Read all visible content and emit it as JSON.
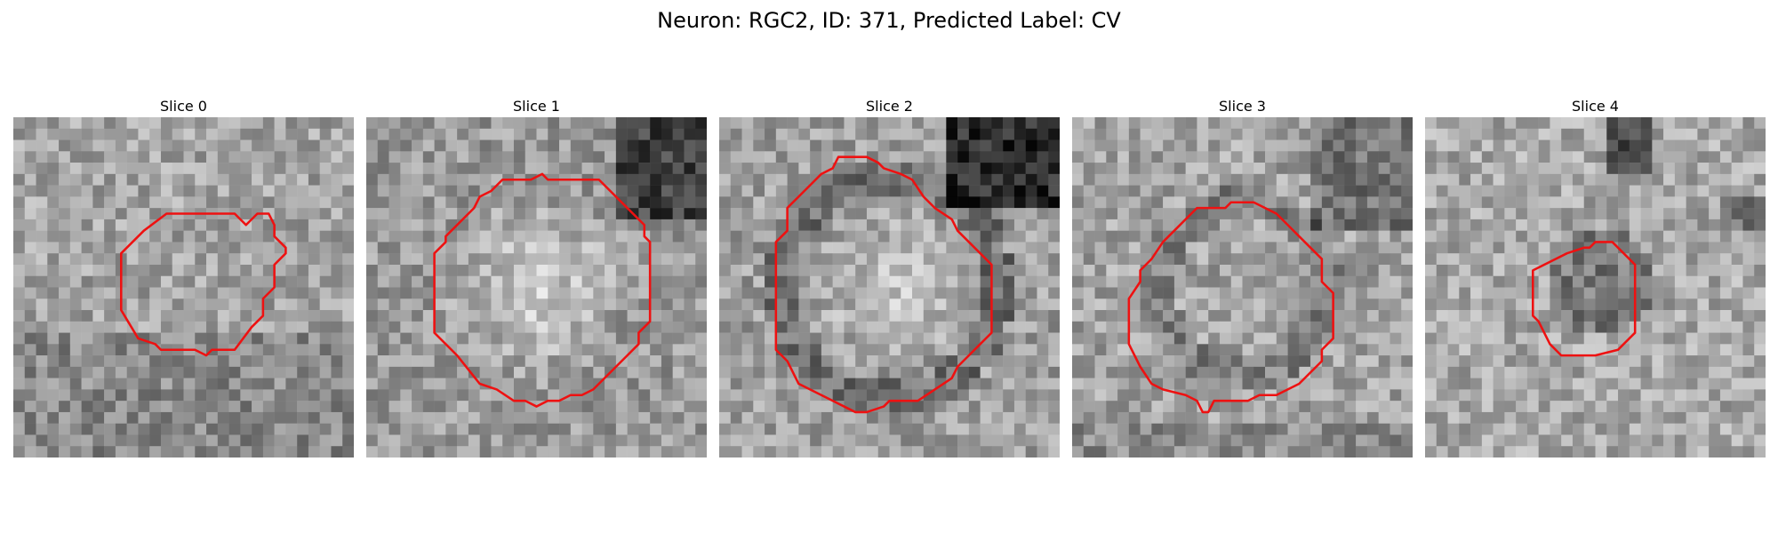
{
  "figure": {
    "title": "Neuron: RGC2, ID: 371, Predicted Label: CV",
    "outline_color": "#ee1111"
  },
  "panels": [
    {
      "title": "Slice 0",
      "tile_variant": "speckled",
      "outline_shape": "small-irregular-octagon"
    },
    {
      "title": "Slice 1",
      "tile_variant": "bright-center",
      "outline_shape": "large-octagon"
    },
    {
      "title": "Slice 2",
      "tile_variant": "dark-ring",
      "outline_shape": "large-octagon"
    },
    {
      "title": "Slice 3",
      "tile_variant": "faint-ring",
      "outline_shape": "medium-octagon"
    },
    {
      "title": "Slice 4",
      "tile_variant": "dark-spot",
      "outline_shape": "small-octagon"
    }
  ]
}
